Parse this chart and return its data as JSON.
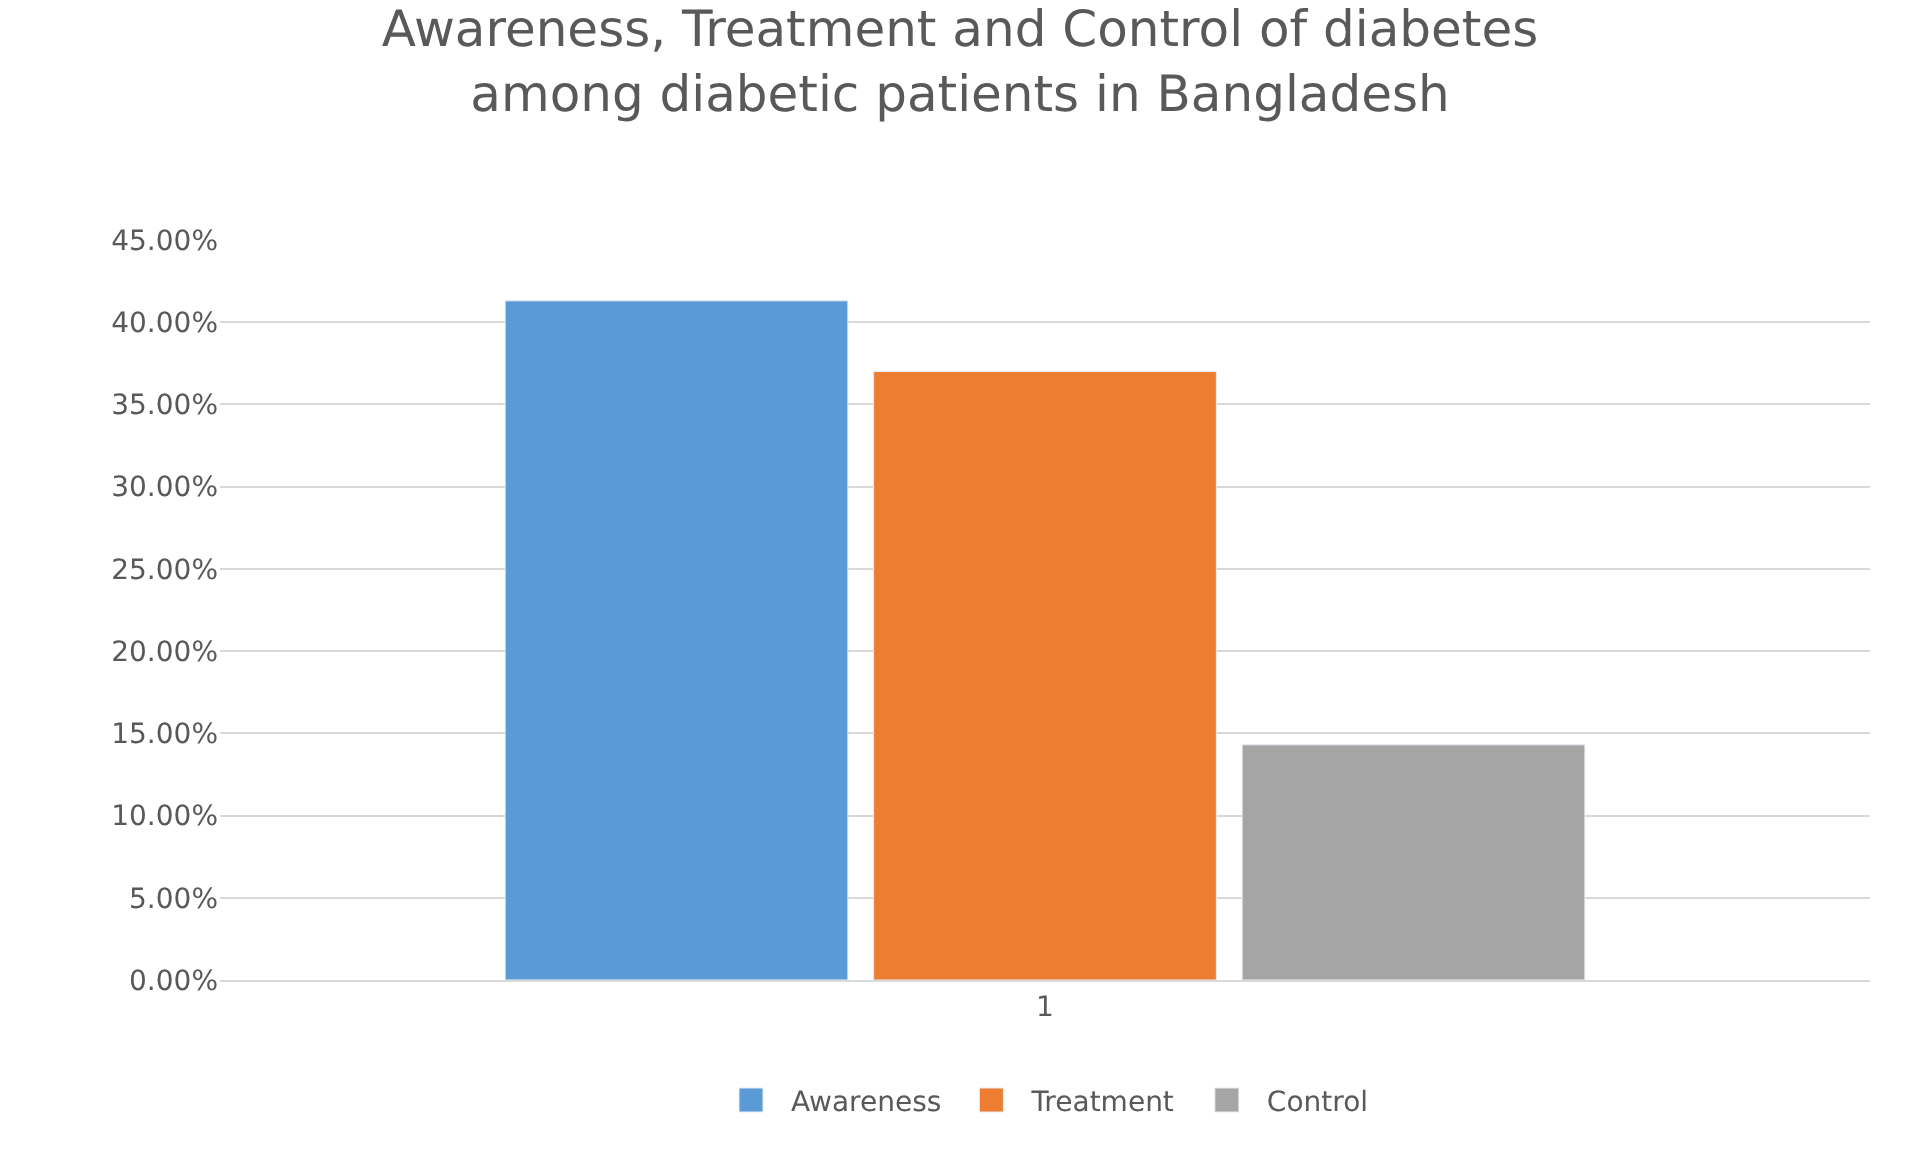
{
  "chart_data": {
    "type": "bar",
    "title": "Awareness, Treatment and Control of diabetes among diabetic patients in Bangladesh",
    "categories": [
      "1"
    ],
    "series": [
      {
        "name": "Awareness",
        "color": "#5b9bd5",
        "values": [
          41.3
        ]
      },
      {
        "name": "Treatment",
        "color": "#ed7d31",
        "values": [
          37.0
        ]
      },
      {
        "name": "Control",
        "color": "#a5a5a5",
        "values": [
          14.3
        ]
      }
    ],
    "ylim": [
      0,
      45
    ],
    "yticks": [
      {
        "value": 0,
        "label": "0.00%"
      },
      {
        "value": 5,
        "label": "5.00%"
      },
      {
        "value": 10,
        "label": "10.00%"
      },
      {
        "value": 15,
        "label": "15.00%"
      },
      {
        "value": 20,
        "label": "20.00%"
      },
      {
        "value": 25,
        "label": "25.00%"
      },
      {
        "value": 30,
        "label": "30.00%"
      },
      {
        "value": 35,
        "label": "35.00%"
      },
      {
        "value": 40,
        "label": "40.00%"
      },
      {
        "value": 45,
        "label": "45.00%"
      }
    ],
    "grid": "y",
    "legend": "bottom"
  }
}
